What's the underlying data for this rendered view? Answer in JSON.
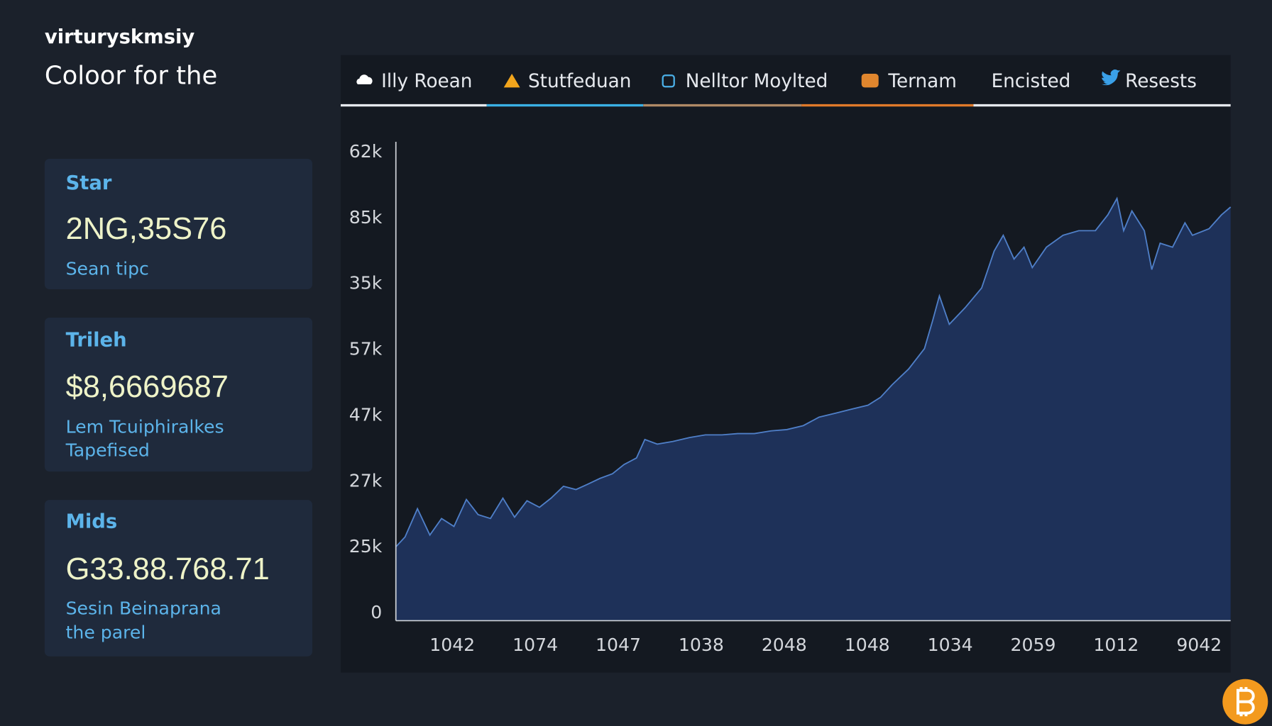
{
  "header": {
    "brand": "virturyskmsiy",
    "subtitle": "Coloor for the"
  },
  "cards": [
    {
      "title": "Star",
      "value": "2NG,35S76",
      "caption": [
        "Sean tipc"
      ]
    },
    {
      "title": "Trileh",
      "value": "$8,6669687",
      "caption": [
        "Lem Tcuiphiralkes",
        "Tapefised"
      ]
    },
    {
      "title": "Mids",
      "value": "G33.88.768.71",
      "caption": [
        "Sesin Beinaprana",
        "the parel"
      ]
    }
  ],
  "tabs": [
    "Illy Roean",
    "Stutfeduan",
    "Nelltor Moylted",
    "Ternam",
    "Encisted",
    "Resests"
  ],
  "chart_data": {
    "type": "area",
    "color": "#4f7fc8",
    "area_color": "#1e3159",
    "x": [
      -0.68,
      -0.57,
      -0.42,
      -0.27,
      -0.13,
      0.02,
      0.17,
      0.31,
      0.46,
      0.61,
      0.75,
      0.9,
      1.05,
      1.19,
      1.34,
      1.49,
      1.63,
      1.78,
      1.93,
      2.07,
      2.22,
      2.32,
      2.47,
      2.66,
      2.86,
      3.05,
      3.25,
      3.44,
      3.64,
      3.84,
      4.03,
      4.23,
      4.42,
      4.62,
      4.81,
      5.01,
      5.16,
      5.3,
      5.5,
      5.69,
      5.79,
      5.87,
      5.99,
      6.18,
      6.38,
      6.53,
      6.64,
      6.77,
      6.89,
      6.99,
      7.16,
      7.36,
      7.55,
      7.75,
      7.9,
      8.01,
      8.09,
      8.19,
      8.34,
      8.43,
      8.53,
      8.68,
      8.83,
      8.92,
      9.12,
      9.27,
      9.38
    ],
    "values": [
      1.01,
      1.16,
      1.59,
      1.19,
      1.44,
      1.32,
      1.73,
      1.5,
      1.44,
      1.75,
      1.46,
      1.71,
      1.61,
      1.75,
      1.93,
      1.88,
      1.96,
      2.05,
      2.12,
      2.26,
      2.36,
      2.64,
      2.57,
      2.61,
      2.67,
      2.71,
      2.71,
      2.73,
      2.73,
      2.77,
      2.79,
      2.85,
      2.98,
      3.04,
      3.1,
      3.16,
      3.28,
      3.47,
      3.71,
      4.02,
      4.45,
      4.82,
      4.39,
      4.64,
      4.94,
      5.5,
      5.74,
      5.38,
      5.56,
      5.25,
      5.56,
      5.74,
      5.81,
      5.81,
      6.05,
      6.3,
      5.81,
      6.11,
      5.81,
      5.22,
      5.62,
      5.56,
      5.93,
      5.74,
      5.84,
      6.05,
      6.17
    ],
    "xlim": [
      -0.68,
      9.38
    ],
    "ylim": [
      0,
      7
    ],
    "xticks": [
      {
        "value": 0,
        "label": "1042"
      },
      {
        "value": 1,
        "label": "1074"
      },
      {
        "value": 2,
        "label": "1047"
      },
      {
        "value": 3,
        "label": "1038"
      },
      {
        "value": 4,
        "label": "2048"
      },
      {
        "value": 5,
        "label": "1048"
      },
      {
        "value": 6,
        "label": "1034"
      },
      {
        "value": 7,
        "label": "2059"
      },
      {
        "value": 8,
        "label": "1012"
      },
      {
        "value": 9,
        "label": "9042"
      }
    ],
    "yticks": [
      0,
      {
        "value": 1,
        "label": "25k"
      },
      {
        "value": 2,
        "label": "27k"
      },
      {
        "value": 3,
        "label": "47k"
      },
      {
        "value": 4,
        "label": "57k"
      },
      {
        "value": 5,
        "label": "35k"
      },
      {
        "value": 6,
        "label": "85k"
      },
      {
        "value": 7,
        "label": "62k"
      }
    ]
  }
}
